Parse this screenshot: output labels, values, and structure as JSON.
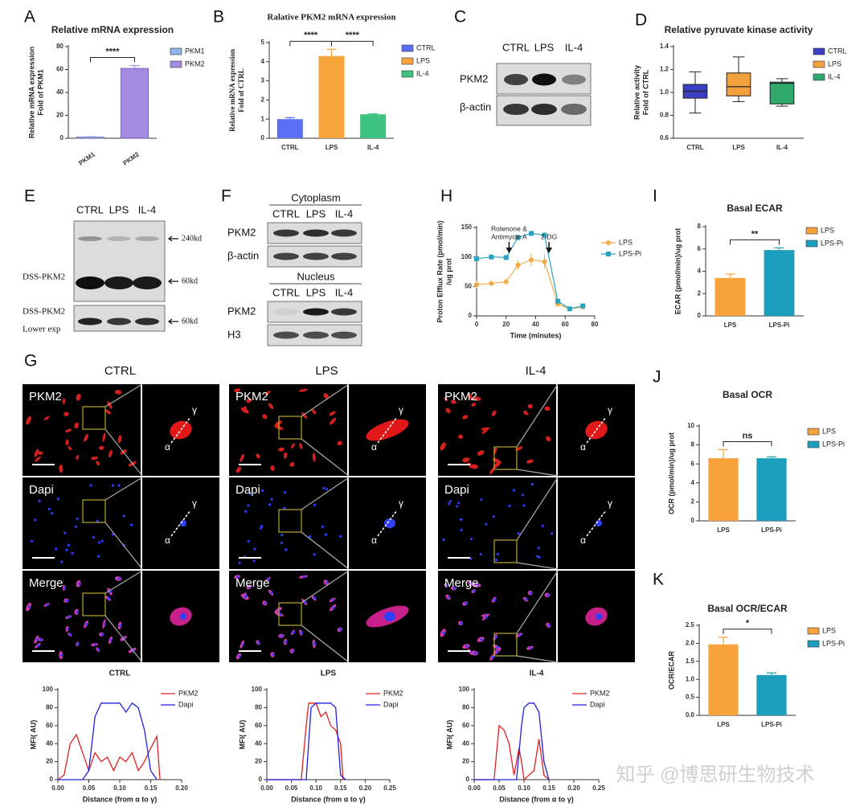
{
  "panel_labels": [
    "A",
    "B",
    "C",
    "D",
    "E",
    "F",
    "G",
    "H",
    "I",
    "J",
    "K"
  ],
  "chart_data": [
    {
      "type": "bar",
      "title": "Relative mRNA expression",
      "ylabel": [
        "Relative mRNA expression",
        "Fold of PKM1"
      ],
      "categories": [
        "PKM1",
        "PKM2"
      ],
      "values": [
        1,
        61
      ],
      "errors": [
        0.4,
        2.5
      ],
      "colors": [
        "#8fb8e8",
        "#a58be0"
      ],
      "ylim": [
        0,
        80
      ],
      "yticks": [
        0,
        20,
        40,
        60,
        80
      ],
      "significance": [
        {
          "label": "****",
          "between": [
            "PKM1",
            "PKM2"
          ]
        }
      ]
    },
    {
      "type": "bar",
      "title": "Ralative PKM2 mRNA expression",
      "ylabel": [
        "Relative mRNA expression",
        "Fold of CTRL"
      ],
      "categories": [
        "CTRL",
        "LPS",
        "IL-4"
      ],
      "values": [
        1.0,
        4.3,
        1.25
      ],
      "errors": [
        0.08,
        0.35,
        0.03
      ],
      "colors": [
        "#5b6ff5",
        "#f7a43d",
        "#3cc37f"
      ],
      "ylim": [
        0,
        5
      ],
      "yticks": [
        0,
        1,
        2,
        3,
        4,
        5
      ],
      "significance": [
        {
          "label": "****",
          "between": [
            "CTRL",
            "LPS"
          ]
        },
        {
          "label": "****",
          "between": [
            "LPS",
            "IL-4"
          ]
        }
      ]
    },
    {
      "type": "box",
      "title": "Relative pyruvate kinase activity",
      "ylabel": [
        "Relative activity",
        "Fold of CTRL"
      ],
      "categories": [
        "CTRL",
        "LPS",
        "IL-4"
      ],
      "colors": [
        "#3a3fc4",
        "#f2a03d",
        "#2ea86b"
      ],
      "boxes": [
        {
          "min": 0.82,
          "q1": 0.95,
          "median": 1.01,
          "q3": 1.07,
          "max": 1.18
        },
        {
          "min": 0.92,
          "q1": 0.97,
          "median": 1.05,
          "q3": 1.17,
          "max": 1.31
        },
        {
          "min": 0.88,
          "q1": 0.9,
          "median": 1.08,
          "q3": 1.09,
          "max": 1.12
        }
      ],
      "ylim": [
        0.6,
        1.4
      ],
      "yticks": [
        0.6,
        0.8,
        {
          "value": 1,
          "label": "1.0"
        },
        1.2,
        1.4
      ]
    },
    {
      "type": "line",
      "xlabel": "Time (minutes)",
      "ylabel": [
        "Proton Efflux Rate (pmol/min)",
        "/ug prot"
      ],
      "xlim": [
        0,
        80
      ],
      "xticks": [
        0,
        20,
        40,
        60,
        80
      ],
      "ylim": [
        0,
        150
      ],
      "yticks": [
        0,
        50,
        100,
        150
      ],
      "series": [
        {
          "name": "LPS",
          "color": "#f5a947",
          "marker": "circle",
          "x": [
            0,
            10,
            20,
            28,
            37,
            46,
            55,
            63,
            72
          ],
          "values": [
            53,
            55,
            58,
            86,
            95,
            92,
            20,
            12,
            15
          ],
          "errors": [
            6,
            5,
            5,
            8,
            10,
            12,
            3,
            2,
            2
          ]
        },
        {
          "name": "LPS-Pi",
          "color": "#2aa3c2",
          "marker": "square",
          "x": [
            0,
            10,
            20,
            28,
            37,
            46,
            55,
            63,
            72
          ],
          "values": [
            97,
            100,
            99,
            133,
            140,
            137,
            25,
            12,
            17
          ],
          "errors": [
            3,
            3,
            3,
            4,
            4,
            4,
            2,
            2,
            2
          ]
        }
      ],
      "annotations": [
        {
          "text": [
            "Rotenone &",
            "Antimycin A"
          ],
          "at": 22
        },
        {
          "text": [
            "2-DG"
          ],
          "at": 49
        }
      ]
    },
    {
      "type": "bar",
      "title": "Basal ECAR",
      "ylabel": "ECAR (pmol/min)/ug prot",
      "categories": [
        "LPS",
        "LPS-Pi"
      ],
      "values": [
        3.4,
        5.9
      ],
      "errors": [
        0.35,
        0.2
      ],
      "colors": [
        "#f8a23c",
        "#1b9fbd"
      ],
      "ylim": [
        0,
        8
      ],
      "yticks": [
        0,
        2,
        4,
        6,
        8
      ],
      "significance": [
        {
          "label": "**",
          "between": [
            "LPS",
            "LPS-Pi"
          ]
        }
      ]
    },
    {
      "type": "bar",
      "title": "Basal OCR",
      "ylabel": "OCR (pmol/min)/ug prot",
      "categories": [
        "LPS",
        "LPS-Pi"
      ],
      "values": [
        6.6,
        6.6
      ],
      "errors": [
        0.9,
        0.15
      ],
      "colors": [
        "#f8a23c",
        "#1b9fbd"
      ],
      "ylim": [
        0,
        10
      ],
      "yticks": [
        0,
        2,
        4,
        6,
        8,
        10
      ],
      "significance": [
        {
          "label": "ns",
          "between": [
            "LPS",
            "LPS-Pi"
          ]
        }
      ]
    },
    {
      "type": "bar",
      "title": "Basal OCR/ECAR",
      "ylabel": "OCR/ECAR",
      "categories": [
        "LPS",
        "LPS-Pi"
      ],
      "values": [
        1.97,
        1.12
      ],
      "errors": [
        0.2,
        0.06
      ],
      "colors": [
        "#f8a23c",
        "#1b9fbd"
      ],
      "ylim": [
        0,
        2.5
      ],
      "yticks": [
        {
          "value": 0,
          "label": "0.0"
        },
        0.5,
        {
          "value": 1,
          "label": "1.0"
        },
        1.5,
        {
          "value": 2,
          "label": "2.0"
        },
        2.5
      ],
      "significance": [
        {
          "label": "*",
          "between": [
            "LPS",
            "LPS-Pi"
          ]
        }
      ]
    },
    {
      "type": "line",
      "title": "CTRL",
      "xlabel": "Distance (from α to γ)",
      "ylabel": "MFI( AU)",
      "xlim": [
        0,
        0.2
      ],
      "xticks": [
        {
          "value": 0,
          "label": "0.00"
        },
        0.05,
        {
          "value": 0.1,
          "label": "0.10"
        },
        0.15,
        {
          "value": 0.2,
          "label": "0.20"
        }
      ],
      "ylim": [
        0,
        100
      ],
      "yticks": [
        0,
        20,
        40,
        60,
        80,
        100
      ],
      "series": [
        {
          "name": "PKM2",
          "color": "#e02020",
          "x": [
            0,
            0.01,
            0.02,
            0.03,
            0.04,
            0.05,
            0.06,
            0.07,
            0.08,
            0.09,
            0.1,
            0.11,
            0.12,
            0.13,
            0.14,
            0.15,
            0.16,
            0.165
          ],
          "values": [
            0,
            5,
            40,
            50,
            30,
            10,
            30,
            20,
            25,
            10,
            25,
            20,
            30,
            10,
            20,
            35,
            48,
            0
          ]
        },
        {
          "name": "Dapi",
          "color": "#2020e0",
          "x": [
            0,
            0.04,
            0.05,
            0.06,
            0.07,
            0.08,
            0.1,
            0.11,
            0.12,
            0.13,
            0.14,
            0.15,
            0.16
          ],
          "values": [
            0,
            0,
            10,
            70,
            85,
            85,
            85,
            75,
            85,
            80,
            55,
            10,
            0
          ]
        }
      ]
    },
    {
      "type": "line",
      "title": "LPS",
      "xlabel": "Distance (from α to γ)",
      "ylabel": "MFI( AU)",
      "xlim": [
        0,
        0.25
      ],
      "xticks": [
        {
          "value": 0,
          "label": "0.00"
        },
        0.05,
        {
          "value": 0.1,
          "label": "0.10"
        },
        0.15,
        {
          "value": 0.2,
          "label": "0.20"
        },
        0.25
      ],
      "ylim": [
        0,
        100
      ],
      "yticks": [
        0,
        20,
        40,
        60,
        80,
        100
      ],
      "series": [
        {
          "name": "PKM2",
          "color": "#e02020",
          "x": [
            0,
            0.07,
            0.08,
            0.085,
            0.1,
            0.11,
            0.12,
            0.13,
            0.14,
            0.15,
            0.155
          ],
          "values": [
            0,
            0,
            60,
            85,
            85,
            70,
            75,
            60,
            55,
            40,
            0
          ]
        },
        {
          "name": "Dapi",
          "color": "#2020e0",
          "x": [
            0,
            0.08,
            0.09,
            0.1,
            0.12,
            0.13,
            0.14,
            0.15,
            0.16
          ],
          "values": [
            0,
            0,
            80,
            85,
            85,
            85,
            80,
            5,
            0
          ]
        }
      ]
    },
    {
      "type": "line",
      "title": "IL-4",
      "xlabel": "Distance (from α to γ)",
      "ylabel": "MFI( AU)",
      "xlim": [
        0,
        0.25
      ],
      "xticks": [
        {
          "value": 0,
          "label": "0.00"
        },
        0.05,
        {
          "value": 0.1,
          "label": "0.10"
        },
        0.15,
        {
          "value": 0.2,
          "label": "0.20"
        },
        0.25
      ],
      "ylim": [
        0,
        100
      ],
      "yticks": [
        0,
        20,
        40,
        60,
        80,
        100
      ],
      "series": [
        {
          "name": "PKM2",
          "color": "#e02020",
          "x": [
            0,
            0.04,
            0.05,
            0.06,
            0.07,
            0.08,
            0.09,
            0.095,
            0.1,
            0.12,
            0.13,
            0.14,
            0.15
          ],
          "values": [
            0,
            0,
            60,
            55,
            40,
            5,
            35,
            20,
            0,
            10,
            45,
            5,
            0
          ]
        },
        {
          "name": "Dapi",
          "color": "#2020e0",
          "x": [
            0,
            0.085,
            0.095,
            0.1,
            0.11,
            0.12,
            0.13,
            0.14,
            0.15
          ],
          "values": [
            0,
            0,
            60,
            80,
            85,
            85,
            75,
            20,
            0
          ]
        }
      ]
    }
  ],
  "blots": {
    "C": {
      "lanes": [
        "CTRL",
        "LPS",
        "IL-4"
      ],
      "rows": [
        "PKM2",
        "β-actin"
      ]
    },
    "E": {
      "lanes": [
        "CTRL",
        "LPS",
        "IL-4"
      ],
      "markers": [
        "240kd",
        "60kd",
        "60kd"
      ],
      "labels": [
        "DSS-PKM2",
        "DSS-PKM2",
        "Lower exp"
      ]
    },
    "F": {
      "sections": [
        {
          "title": "Cytoplasm",
          "lanes": [
            "CTRL",
            "LPS",
            "IL-4"
          ],
          "rows": [
            "PKM2",
            "β-actin"
          ]
        },
        {
          "title": "Nucleus",
          "lanes": [
            "CTRL",
            "LPS",
            "IL-4"
          ],
          "rows": [
            "PKM2",
            "H3"
          ]
        }
      ]
    }
  },
  "micrographs": {
    "groups": [
      "CTRL",
      "LPS",
      "IL-4"
    ],
    "rows": [
      "PKM2",
      "Dapi",
      "Merge"
    ],
    "alpha": "α",
    "gamma": "γ"
  },
  "watermark": "知乎 @博思研生物技术"
}
